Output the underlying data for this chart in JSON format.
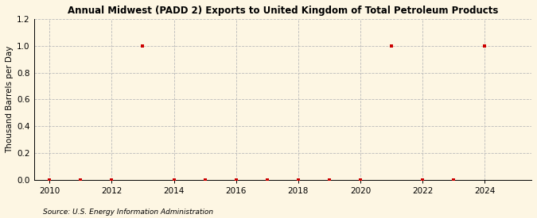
{
  "title": "Annual Midwest (PADD 2) Exports to United Kingdom of Total Petroleum Products",
  "ylabel": "Thousand Barrels per Day",
  "source": "Source: U.S. Energy Information Administration",
  "background_color": "#fdf6e3",
  "years": [
    2010,
    2011,
    2012,
    2013,
    2014,
    2015,
    2016,
    2017,
    2018,
    2019,
    2020,
    2021,
    2022,
    2023,
    2024
  ],
  "values": [
    0.0,
    0.0,
    0.0,
    1.0,
    0.0,
    0.0,
    0.0,
    0.0,
    0.0,
    0.0,
    0.0,
    1.0,
    0.0,
    0.0,
    1.0
  ],
  "marker_color": "#cc0000",
  "marker_size": 3.5,
  "xlim": [
    2009.5,
    2025.5
  ],
  "ylim": [
    0.0,
    1.2
  ],
  "yticks": [
    0.0,
    0.2,
    0.4,
    0.6,
    0.8,
    1.0,
    1.2
  ],
  "xticks": [
    2010,
    2012,
    2014,
    2016,
    2018,
    2020,
    2022,
    2024
  ],
  "grid_color": "#bbbbbb",
  "title_fontsize": 8.5,
  "label_fontsize": 7.5,
  "tick_fontsize": 7.5,
  "source_fontsize": 6.5
}
